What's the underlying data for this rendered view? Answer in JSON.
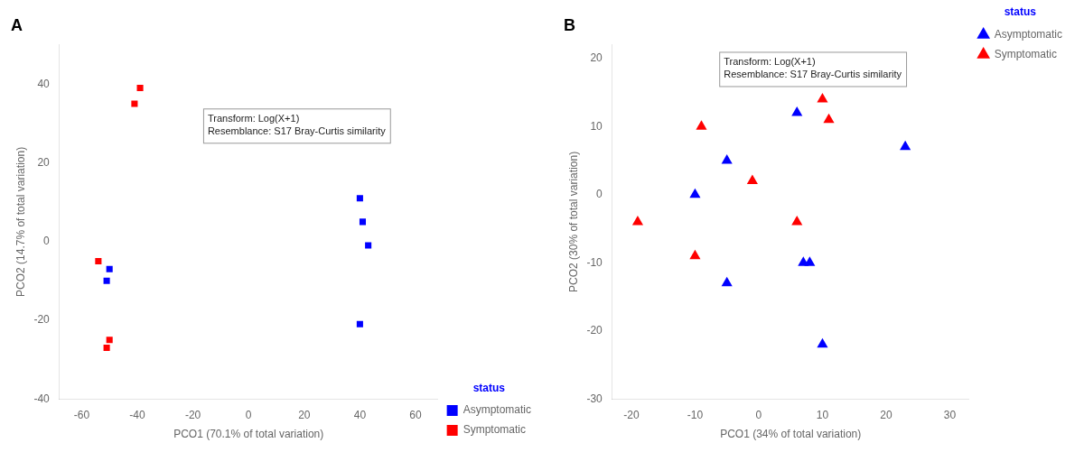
{
  "chart_data": [
    {
      "type": "scatter",
      "title": "A",
      "xlabel": "PCO1 (70.1% of total variation)",
      "ylabel": "PCO2 (14.7% of total variation)",
      "xlim": [
        -68,
        68
      ],
      "ylim": [
        -40,
        50
      ],
      "xticks": [
        -60,
        -40,
        -20,
        0,
        20,
        40,
        60
      ],
      "yticks": [
        -40,
        -20,
        0,
        20,
        40
      ],
      "annotation": "Transform: Log(X+1)\nResemblance: S17 Bray-Curtis similarity",
      "legend_title": "status",
      "legend_title_color": "blue",
      "legend": "lower right",
      "grid": false,
      "series": [
        {
          "name": "Asymptomatic",
          "color": "blue",
          "marker": "square",
          "x": [
            -50,
            -51,
            40,
            41,
            43,
            40
          ],
          "values": [
            -7,
            -10,
            11,
            5,
            -1,
            -21
          ]
        },
        {
          "name": "Symptomatic",
          "color": "red",
          "marker": "square",
          "x": [
            -54,
            -41,
            -39,
            -50,
            -51
          ],
          "values": [
            -5,
            35,
            39,
            -25,
            -27
          ]
        }
      ]
    },
    {
      "type": "scatter",
      "title": "B",
      "xlabel": "PCO1 (34% of total variation)",
      "ylabel": "PCO2 (30% of total variation)",
      "xlim": [
        -23,
        33
      ],
      "ylim": [
        -30,
        22
      ],
      "xticks": [
        -20,
        -10,
        0,
        10,
        20,
        30
      ],
      "yticks": [
        -30,
        -20,
        -10,
        0,
        10,
        20
      ],
      "annotation": "Transform: Log(X+1)\nResemblance: S17 Bray-Curtis similarity",
      "legend_title": "status",
      "legend_title_color": "blue",
      "legend": "upper right",
      "grid": false,
      "series": [
        {
          "name": "Asymptomatic",
          "color": "blue",
          "marker": "triangle",
          "x": [
            -10,
            -5,
            -5,
            6,
            7,
            8,
            23,
            10
          ],
          "values": [
            0,
            5,
            -13,
            12,
            -10,
            -10,
            7,
            -22
          ]
        },
        {
          "name": "Symptomatic",
          "color": "red",
          "marker": "triangle",
          "x": [
            -19,
            -10,
            -9,
            -1,
            6,
            10,
            11
          ],
          "values": [
            -4,
            -9,
            10,
            2,
            -4,
            14,
            11
          ]
        }
      ]
    }
  ]
}
